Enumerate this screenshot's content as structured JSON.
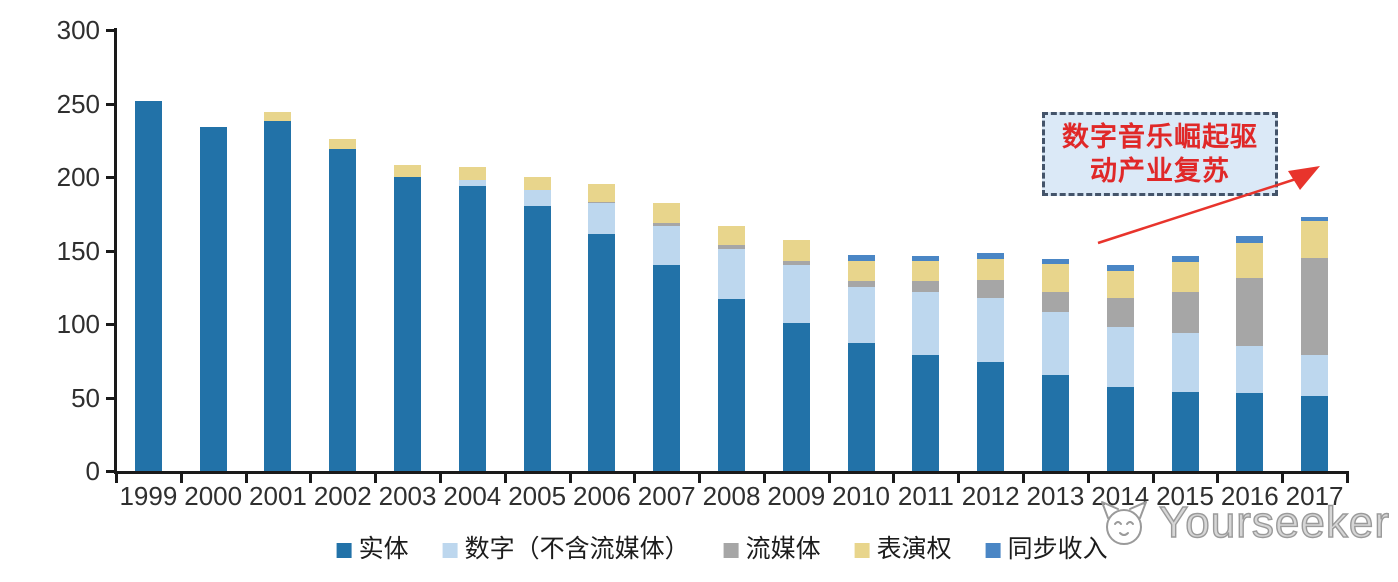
{
  "watermark": {
    "text": "Yourseeker",
    "icon": "cat-face-outline",
    "color": "#9a9a9a"
  },
  "annotation": {
    "line1": "数字音乐崛起驱",
    "line2": "动产业复苏",
    "text_color": "#e02828",
    "box_fill": "#dbe9f7",
    "border_color": "#44546a",
    "arrow_color": "#e8342c"
  },
  "chart_data": {
    "type": "bar",
    "stacked": true,
    "title": "",
    "xlabel": "",
    "ylabel": "",
    "ylim": [
      0,
      300
    ],
    "yticks": [
      0,
      50,
      100,
      150,
      200,
      250,
      300
    ],
    "grid": false,
    "legend_position": "bottom",
    "axis_color": "#1a1a1a",
    "categories": [
      "1999",
      "2000",
      "2001",
      "2002",
      "2003",
      "2004",
      "2005",
      "2006",
      "2007",
      "2008",
      "2009",
      "2010",
      "2011",
      "2012",
      "2013",
      "2014",
      "2015",
      "2016",
      "2017"
    ],
    "series": [
      {
        "name": "实体",
        "color": "#2272a8",
        "values": [
          252,
          234,
          238,
          219,
          200,
          194,
          180,
          161,
          140,
          117,
          101,
          87,
          79,
          74,
          65,
          57,
          54,
          53,
          51
        ]
      },
      {
        "name": "数字（不含流媒体）",
        "color": "#bdd7ee",
        "values": [
          0,
          0,
          0,
          0,
          0,
          4,
          11,
          21,
          27,
          34,
          39,
          38,
          43,
          44,
          43,
          41,
          40,
          32,
          28
        ]
      },
      {
        "name": "流媒体",
        "color": "#a6a6a6",
        "values": [
          0,
          0,
          0,
          0,
          0,
          0,
          0,
          1,
          2,
          3,
          3,
          4,
          7,
          12,
          14,
          20,
          28,
          46,
          66
        ]
      },
      {
        "name": "表演权",
        "color": "#e8d58c",
        "values": [
          0,
          0,
          6,
          7,
          8,
          9,
          9,
          12,
          13,
          13,
          14,
          14,
          14,
          14,
          19,
          18,
          20,
          24,
          25
        ]
      },
      {
        "name": "同步收入",
        "color": "#4a86c5",
        "values": [
          0,
          0,
          0,
          0,
          0,
          0,
          0,
          0,
          0,
          0,
          0,
          4,
          3,
          4,
          3,
          4,
          4,
          5,
          3
        ]
      }
    ]
  }
}
